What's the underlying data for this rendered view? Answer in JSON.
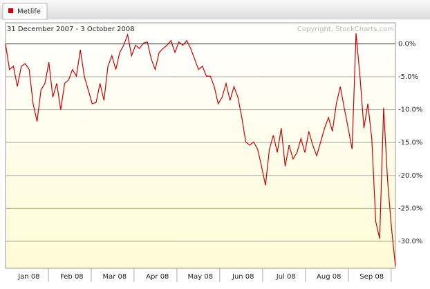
{
  "chart_data": {
    "type": "line",
    "subtitle": "31 December 2007 - 3 October 2008",
    "annotation": "Copyright, StockCharts.com",
    "months": [
      "Jan 08",
      "Feb 08",
      "Mar 08",
      "Apr 08",
      "May 08",
      "Jun 08",
      "Jul 08",
      "Aug 08",
      "Sep 08"
    ],
    "series": [
      {
        "name": "Metlife",
        "color": "#cc0000",
        "values": [
          0,
          -3.9,
          -3.4,
          -6.5,
          -3.4,
          -3.0,
          -3.9,
          -9.1,
          -11.8,
          -7.0,
          -6.0,
          -2.8,
          -8.1,
          -6.0,
          -10.0,
          -6.0,
          -5.5,
          -3.9,
          -4.9,
          -0.9,
          -4.9,
          -7.0,
          -9.1,
          -8.9,
          -6.0,
          -8.6,
          -3.4,
          -1.8,
          -3.9,
          -1.3,
          -0.2,
          1.4,
          -1.8,
          -0.2,
          -0.7,
          0.1,
          0.3,
          -2.3,
          -3.9,
          -1.3,
          -0.7,
          -0.2,
          0.5,
          -1.3,
          0.3,
          -0.2,
          0.5,
          -0.7,
          -2.3,
          -3.9,
          -3.4,
          -4.9,
          -4.9,
          -6.5,
          -9.1,
          -8.1,
          -6.0,
          -8.6,
          -6.5,
          -8.1,
          -11.2,
          -14.9,
          -15.4,
          -14.9,
          -16.0,
          -18.6,
          -21.5,
          -16.0,
          -13.9,
          -16.5,
          -12.8,
          -18.6,
          -15.4,
          -17.5,
          -16.5,
          -14.4,
          -16.5,
          -13.3,
          -15.4,
          -17.0,
          -14.9,
          -12.8,
          -11.2,
          -13.3,
          -9.1,
          -6.5,
          -9.7,
          -12.8,
          -16.0,
          1.6,
          -4.9,
          -12.8,
          -9.1,
          -14.4,
          -27.0,
          -29.6,
          -9.7,
          -20.7,
          -28.0,
          -33.8
        ]
      }
    ],
    "ylim": [
      -34.1,
      3.2
    ],
    "yticks": [
      {
        "value": 0,
        "label": "0.0%"
      },
      {
        "value": -5,
        "label": "-5.0%"
      },
      {
        "value": -10,
        "label": "-10.0%"
      },
      {
        "value": -15,
        "label": "-15.0%"
      },
      {
        "value": -20,
        "label": "-20.0%"
      },
      {
        "value": -25,
        "label": "-25.0%"
      },
      {
        "value": -30,
        "label": "-30.0%"
      }
    ],
    "grid": true
  }
}
